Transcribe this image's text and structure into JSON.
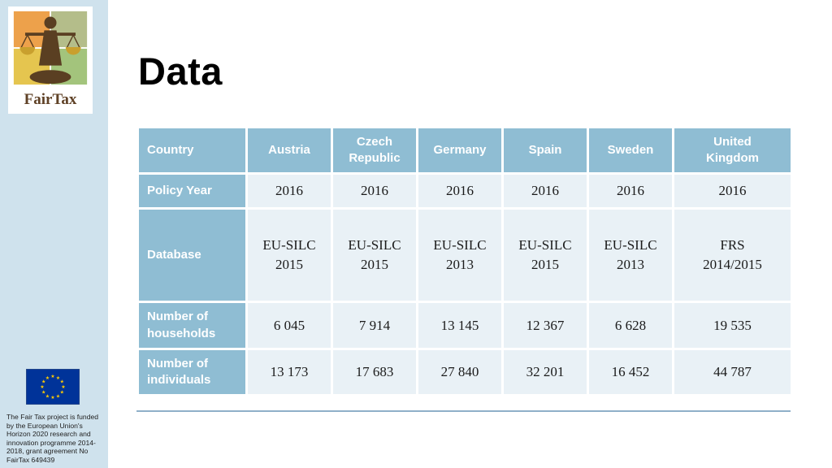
{
  "slide": {
    "title": "Data"
  },
  "sidebar": {
    "logo_text": "FairTax",
    "funding_text": "The Fair Tax project is funded by the European Union's Horizon 2020 research and innovation programme 2014-2018, grant agreement No FairTax 649439"
  },
  "colors": {
    "sidebar_bg": "#cfe2ed",
    "table_header_bg": "#8fbdd3",
    "table_cell_bg": "#e9f1f6",
    "divider": "#8fb0c9",
    "eu_flag_blue": "#003399",
    "eu_flag_stars": "#ffcc00",
    "logo_brown": "#5f4126"
  },
  "chart_data": {
    "type": "table",
    "columns": [
      "Country",
      "Austria",
      "Czech\nRepublic",
      "Germany",
      "Spain",
      "Sweden",
      "United\nKingdom"
    ],
    "rows": [
      {
        "label": "Policy Year",
        "values": [
          "2016",
          "2016",
          "2016",
          "2016",
          "2016",
          "2016"
        ]
      },
      {
        "label": "Database",
        "values": [
          "EU-SILC\n2015",
          "EU-SILC\n2015",
          "EU-SILC\n2013",
          "EU-SILC\n2015",
          "EU-SILC\n2013",
          "FRS\n2014/2015"
        ]
      },
      {
        "label": "Number of\nhouseholds",
        "values": [
          "6 045",
          "7 914",
          "13 145",
          "12 367",
          "6 628",
          "19 535"
        ]
      },
      {
        "label": "Number of\nindividuals",
        "values": [
          "13 173",
          "17 683",
          "27 840",
          "32 201",
          "16 452",
          "44 787"
        ]
      }
    ]
  }
}
